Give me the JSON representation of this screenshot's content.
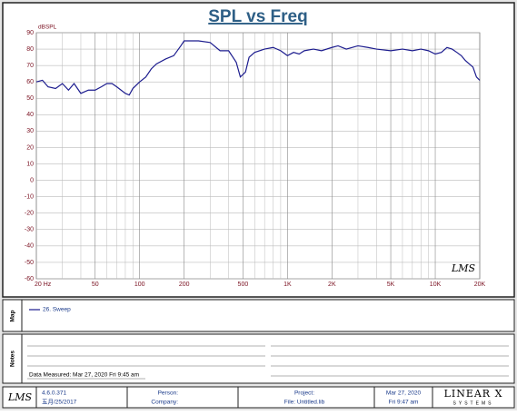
{
  "chart_data": {
    "type": "line",
    "title": "SPL vs Freq",
    "y_label": "dBSPL",
    "watermark": "LMS",
    "x_scale": "log",
    "grid": true,
    "x": [
      20,
      22,
      24,
      27,
      30,
      33,
      36,
      40,
      45,
      50,
      55,
      60,
      65,
      70,
      80,
      85,
      90,
      100,
      110,
      120,
      130,
      150,
      170,
      190,
      200,
      250,
      300,
      350,
      400,
      450,
      480,
      520,
      550,
      600,
      700,
      800,
      900,
      1000,
      1100,
      1200,
      1300,
      1500,
      1700,
      2000,
      2200,
      2500,
      3000,
      3500,
      4000,
      5000,
      6000,
      7000,
      8000,
      9000,
      10000,
      11000,
      12000,
      13000,
      14000,
      15000,
      16000,
      18000,
      19000,
      20000
    ],
    "series": [
      {
        "name": "26. Sweep",
        "color": "#1c1c8e",
        "values": [
          60,
          61,
          57,
          56,
          59,
          55,
          59,
          53,
          55,
          55,
          57,
          59,
          59,
          57,
          53,
          52,
          56,
          60,
          63,
          68,
          71,
          74,
          76,
          82,
          85,
          85,
          84,
          79,
          79,
          72,
          63,
          66,
          75,
          78,
          80,
          81,
          79,
          76,
          78,
          77,
          79,
          80,
          79,
          81,
          82,
          80,
          82,
          81,
          80,
          79,
          80,
          79,
          80,
          79,
          77,
          78,
          81,
          80,
          78,
          76,
          73,
          69,
          63,
          61
        ]
      }
    ],
    "xlim": [
      20,
      20000
    ],
    "xticks": [
      {
        "value": 20,
        "label": "20 Hz"
      },
      50,
      100,
      200,
      500,
      {
        "value": 1000,
        "label": "1K"
      },
      {
        "value": 2000,
        "label": "2K"
      },
      {
        "value": 5000,
        "label": "5K"
      },
      {
        "value": 10000,
        "label": "10K"
      },
      {
        "value": 20000,
        "label": "20K"
      }
    ],
    "x_minor_ticks": [
      30,
      40,
      60,
      70,
      80,
      90,
      300,
      400,
      600,
      700,
      800,
      900,
      3000,
      4000,
      6000,
      7000,
      8000,
      9000
    ],
    "ylim": [
      -60,
      90
    ],
    "yticks": [
      -60,
      -50,
      -40,
      -30,
      -20,
      -10,
      0,
      10,
      20,
      30,
      40,
      50,
      60,
      70,
      80,
      90
    ]
  },
  "map": {
    "label": "Map"
  },
  "notes": {
    "label": "Notes",
    "data_measured": "Data Measured: Mar 27, 2020  Fri  9:45 am"
  },
  "footer": {
    "logo": "LMS",
    "version": "4.6.0.371",
    "build_date": "五月/25/2017",
    "person": "Person:",
    "company": "Company:",
    "project": "Project:",
    "file": "File: Untitled.lib",
    "date": "Mar 27, 2020",
    "time": "Fri  9:47 am",
    "brand": "LINEAR X",
    "brand_sub": "SYSTEMS"
  }
}
